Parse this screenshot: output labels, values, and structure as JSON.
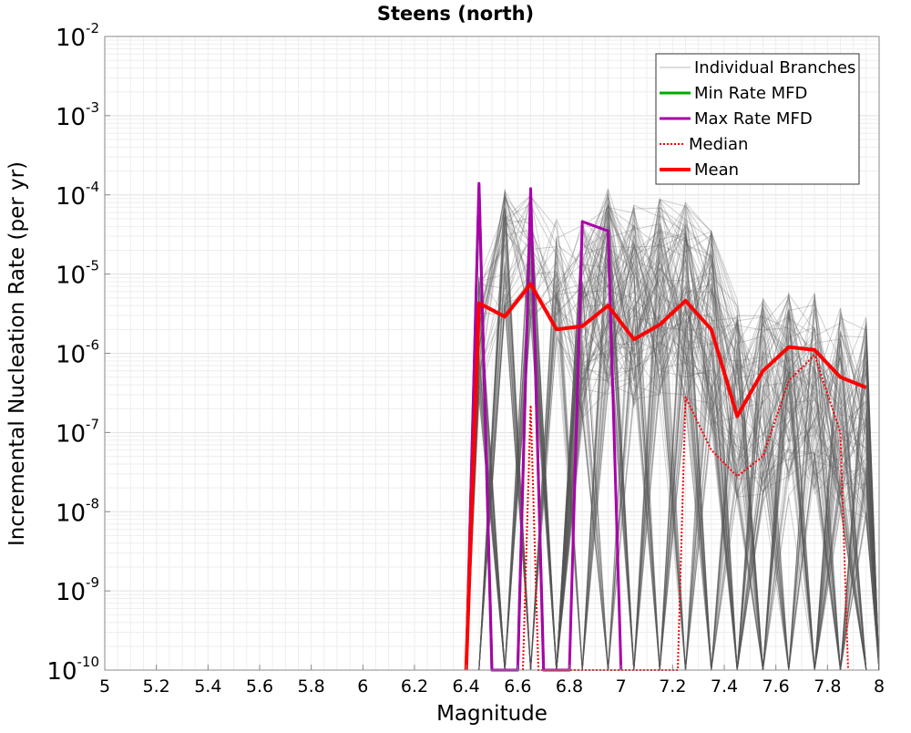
{
  "chart_data": {
    "type": "line",
    "title": "Steens (north)",
    "xlabel": "Magnitude",
    "ylabel": "Incremental Nucleation Rate (per yr)",
    "xlim": [
      5,
      8
    ],
    "ylim": [
      1e-10,
      0.01
    ],
    "y_scale": "log",
    "x_ticks": [
      "5",
      "5.2",
      "5.4",
      "5.6",
      "5.8",
      "6",
      "6.2",
      "6.4",
      "6.6",
      "6.8",
      "7",
      "7.2",
      "7.4",
      "7.6",
      "7.8",
      "8"
    ],
    "y_ticks": [
      {
        "base": "10",
        "exp": "-2"
      },
      {
        "base": "10",
        "exp": "-3"
      },
      {
        "base": "10",
        "exp": "-4"
      },
      {
        "base": "10",
        "exp": "-5"
      },
      {
        "base": "10",
        "exp": "-6"
      },
      {
        "base": "10",
        "exp": "-7"
      },
      {
        "base": "10",
        "exp": "-8"
      },
      {
        "base": "10",
        "exp": "-9"
      },
      {
        "base": "10",
        "exp": "-10"
      }
    ],
    "grid": true,
    "legend_position": "top-right",
    "series": [
      {
        "name": "Individual Branches",
        "color": "#555555",
        "style": "thin-many",
        "envelope_max": [
          [
            6.45,
            1e-05
          ],
          [
            6.55,
            0.00012
          ],
          [
            6.65,
            0.0001
          ],
          [
            6.75,
            6e-05
          ],
          [
            6.85,
            5e-05
          ],
          [
            6.95,
            0.00012
          ],
          [
            7.05,
            8e-05
          ],
          [
            7.15,
            9e-05
          ],
          [
            7.25,
            8e-05
          ],
          [
            7.35,
            4e-05
          ],
          [
            7.45,
            5e-06
          ],
          [
            7.55,
            5e-06
          ],
          [
            7.65,
            6e-06
          ],
          [
            7.75,
            6e-06
          ],
          [
            7.85,
            4e-06
          ],
          [
            7.95,
            3e-06
          ]
        ]
      },
      {
        "name": "Min Rate MFD",
        "color": "#00aa00",
        "style": "solid",
        "points": [
          [
            6.4,
            1e-10
          ],
          [
            6.45,
            0.00013
          ],
          [
            6.5,
            1e-10
          ],
          [
            6.6,
            1e-10
          ],
          [
            6.65,
            0.0001
          ],
          [
            6.7,
            1e-10
          ]
        ]
      },
      {
        "name": "Max Rate MFD",
        "color": "#aa00aa",
        "style": "solid",
        "points": [
          [
            6.4,
            1e-10
          ],
          [
            6.45,
            0.00014
          ],
          [
            6.5,
            1e-10
          ],
          [
            6.6,
            1e-10
          ],
          [
            6.65,
            0.00012
          ],
          [
            6.7,
            1e-10
          ],
          [
            6.8,
            1e-10
          ],
          [
            6.85,
            4.6e-05
          ],
          [
            6.95,
            3.5e-05
          ],
          [
            7.0,
            1e-10
          ]
        ]
      },
      {
        "name": "Median",
        "color": "#ff0000",
        "style": "dotted",
        "points": [
          [
            6.62,
            1e-10
          ],
          [
            6.65,
            2.2e-07
          ],
          [
            6.68,
            1e-10
          ],
          [
            7.22,
            1e-10
          ],
          [
            7.25,
            2.8e-07
          ],
          [
            7.35,
            6e-08
          ],
          [
            7.45,
            2.8e-08
          ],
          [
            7.55,
            5e-08
          ],
          [
            7.65,
            4.5e-07
          ],
          [
            7.75,
            9.5e-07
          ],
          [
            7.85,
            1e-07
          ],
          [
            7.88,
            1e-10
          ]
        ]
      },
      {
        "name": "Mean",
        "color": "#ff0000",
        "style": "thick",
        "points": [
          [
            6.4,
            1e-10
          ],
          [
            6.45,
            4.3e-06
          ],
          [
            6.55,
            2.9e-06
          ],
          [
            6.65,
            7.5e-06
          ],
          [
            6.75,
            2e-06
          ],
          [
            6.85,
            2.2e-06
          ],
          [
            6.95,
            4e-06
          ],
          [
            7.05,
            1.5e-06
          ],
          [
            7.15,
            2.3e-06
          ],
          [
            7.25,
            4.6e-06
          ],
          [
            7.35,
            2e-06
          ],
          [
            7.45,
            1.6e-07
          ],
          [
            7.55,
            6e-07
          ],
          [
            7.65,
            1.2e-06
          ],
          [
            7.75,
            1.1e-06
          ],
          [
            7.85,
            5e-07
          ],
          [
            7.95,
            3.7e-07
          ]
        ]
      }
    ]
  }
}
